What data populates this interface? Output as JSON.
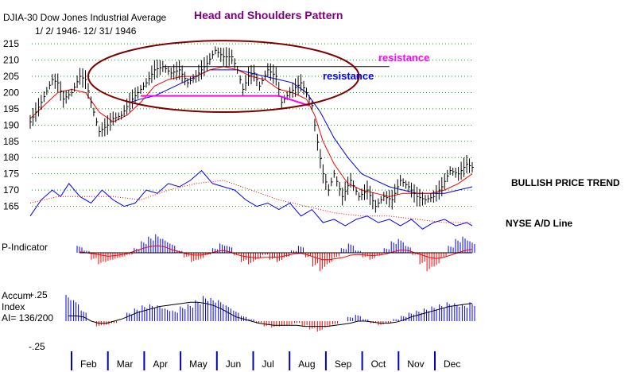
{
  "chart_data": {
    "type": "line",
    "title": "Head and Shoulders Pattern",
    "header": {
      "name": "DJIA-30  Dow Jones Industrial Average",
      "range": "1/ 2/ 1946- 12/ 31/ 1946"
    },
    "x_ticks": [
      "Feb",
      "Mar",
      "Apr",
      "May",
      "Jun",
      "Jul",
      "Aug",
      "Sep",
      "Oct",
      "Nov",
      "Dec"
    ],
    "price_panel": {
      "y_ticks": [
        215,
        210,
        205,
        200,
        195,
        190,
        185,
        180,
        175,
        170,
        165
      ],
      "ylim": [
        160,
        217
      ],
      "djia_points": [
        [
          0,
          191
        ],
        [
          0.4,
          197
        ],
        [
          0.8,
          204
        ],
        [
          1.0,
          203
        ],
        [
          1.2,
          198
        ],
        [
          1.5,
          200
        ],
        [
          1.8,
          205
        ],
        [
          2.0,
          204
        ],
        [
          2.2,
          197
        ],
        [
          2.5,
          188
        ],
        [
          2.8,
          190
        ],
        [
          3.0,
          192
        ],
        [
          3.3,
          193
        ],
        [
          3.6,
          197
        ],
        [
          3.9,
          200
        ],
        [
          4.2,
          203
        ],
        [
          4.5,
          207
        ],
        [
          4.8,
          208
        ],
        [
          5.1,
          206
        ],
        [
          5.4,
          207
        ],
        [
          5.7,
          203
        ],
        [
          6.0,
          205
        ],
        [
          6.4,
          209
        ],
        [
          6.7,
          213
        ],
        [
          7.0,
          211
        ],
        [
          7.3,
          211
        ],
        [
          7.5,
          207
        ],
        [
          7.7,
          201
        ],
        [
          7.9,
          205
        ],
        [
          8.1,
          206
        ],
        [
          8.3,
          202
        ],
        [
          8.6,
          207
        ],
        [
          8.9,
          205
        ],
        [
          9.1,
          197
        ],
        [
          9.4,
          200
        ],
        [
          9.8,
          203
        ],
        [
          10.0,
          200
        ],
        [
          10.2,
          196
        ],
        [
          10.3,
          190
        ],
        [
          10.45,
          182
        ],
        [
          10.6,
          175
        ],
        [
          10.8,
          170
        ],
        [
          11.0,
          175
        ],
        [
          11.3,
          168
        ],
        [
          11.6,
          173
        ],
        [
          11.9,
          168
        ],
        [
          12.2,
          170
        ],
        [
          12.5,
          165
        ],
        [
          12.8,
          168
        ],
        [
          13.1,
          167
        ],
        [
          13.4,
          173
        ],
        [
          13.7,
          171
        ],
        [
          14.0,
          168
        ],
        [
          14.3,
          167
        ],
        [
          14.6,
          168
        ],
        [
          14.9,
          171
        ],
        [
          15.2,
          176
        ],
        [
          15.5,
          175
        ],
        [
          15.8,
          178
        ],
        [
          16.0,
          177
        ]
      ],
      "ma_red": [
        [
          0,
          192
        ],
        [
          0.5,
          196
        ],
        [
          1.0,
          200
        ],
        [
          1.5,
          201
        ],
        [
          2.0,
          200
        ],
        [
          2.5,
          194
        ],
        [
          3.0,
          191
        ],
        [
          3.5,
          193
        ],
        [
          4.0,
          197
        ],
        [
          4.5,
          202
        ],
        [
          5.0,
          204
        ],
        [
          5.5,
          205
        ],
        [
          6.0,
          205
        ],
        [
          6.5,
          207
        ],
        [
          7.0,
          208
        ],
        [
          7.5,
          207
        ],
        [
          8.0,
          205
        ],
        [
          8.5,
          204
        ],
        [
          9.0,
          201
        ],
        [
          9.5,
          200
        ],
        [
          10.0,
          198
        ],
        [
          10.3,
          193
        ],
        [
          10.6,
          185
        ],
        [
          11.0,
          178
        ],
        [
          11.5,
          172
        ],
        [
          12.0,
          170
        ],
        [
          12.5,
          169
        ],
        [
          13.0,
          168
        ],
        [
          13.5,
          169
        ],
        [
          14.0,
          169
        ],
        [
          14.5,
          169
        ],
        [
          15.0,
          170
        ],
        [
          15.5,
          172
        ],
        [
          16.0,
          175
        ]
      ],
      "ma_blue": [
        [
          3.6,
          197
        ],
        [
          4.0,
          198
        ],
        [
          4.5,
          199
        ],
        [
          5.0,
          201
        ],
        [
          5.5,
          203
        ],
        [
          6.0,
          205
        ],
        [
          6.5,
          207
        ],
        [
          7.0,
          207
        ],
        [
          7.5,
          207
        ],
        [
          8.0,
          206
        ],
        [
          8.5,
          205
        ],
        [
          9.0,
          204
        ],
        [
          9.5,
          203
        ],
        [
          10.0,
          200
        ],
        [
          10.5,
          194
        ],
        [
          11.0,
          186
        ],
        [
          11.5,
          180
        ],
        [
          12.0,
          175
        ],
        [
          12.5,
          173
        ],
        [
          13.0,
          171
        ],
        [
          13.5,
          170
        ],
        [
          14.0,
          169
        ],
        [
          14.5,
          169
        ],
        [
          15.0,
          169
        ],
        [
          15.5,
          170
        ],
        [
          16.0,
          171
        ]
      ],
      "resistance_black": [
        [
          4.8,
          208
        ],
        [
          13.0,
          208
        ]
      ],
      "neckline_magenta": [
        [
          4.0,
          199
        ],
        [
          9.0,
          199
        ]
      ],
      "neckline_slope": [
        [
          9.0,
          199
        ],
        [
          10.1,
          196
        ]
      ],
      "head_ellipse": {
        "cx": 7.0,
        "cy": 205,
        "rx": 4.9,
        "ry": 11
      },
      "ad_line": [
        [
          0,
          162
        ],
        [
          0.4,
          167
        ],
        [
          0.8,
          170
        ],
        [
          1.1,
          168
        ],
        [
          1.4,
          172
        ],
        [
          1.8,
          168
        ],
        [
          2.2,
          166
        ],
        [
          2.6,
          170
        ],
        [
          3.0,
          167
        ],
        [
          3.4,
          165
        ],
        [
          3.8,
          166
        ],
        [
          4.2,
          170
        ],
        [
          4.6,
          169
        ],
        [
          5.0,
          172
        ],
        [
          5.4,
          171
        ],
        [
          5.8,
          173
        ],
        [
          6.2,
          176
        ],
        [
          6.6,
          172
        ],
        [
          7.0,
          171
        ],
        [
          7.4,
          170
        ],
        [
          7.8,
          167
        ],
        [
          8.2,
          165
        ],
        [
          8.6,
          166
        ],
        [
          9.0,
          164
        ],
        [
          9.4,
          166
        ],
        [
          9.8,
          162
        ],
        [
          10.2,
          164
        ],
        [
          10.6,
          160
        ],
        [
          11.0,
          161
        ],
        [
          11.4,
          159
        ],
        [
          11.8,
          161
        ],
        [
          12.2,
          162
        ],
        [
          12.6,
          160
        ],
        [
          13.0,
          161
        ],
        [
          13.4,
          159
        ],
        [
          13.8,
          161
        ],
        [
          14.2,
          158
        ],
        [
          14.6,
          160
        ],
        [
          15.0,
          161
        ],
        [
          15.4,
          159
        ],
        [
          15.8,
          160
        ],
        [
          16.0,
          159
        ]
      ],
      "ad_ma": [
        [
          0,
          166
        ],
        [
          1.0,
          168
        ],
        [
          2.0,
          168
        ],
        [
          3.0,
          168
        ],
        [
          4.0,
          167
        ],
        [
          5.0,
          170
        ],
        [
          6.0,
          172
        ],
        [
          7.0,
          173
        ],
        [
          8.0,
          170
        ],
        [
          9.0,
          167
        ],
        [
          10.0,
          165
        ],
        [
          11.0,
          163
        ],
        [
          12.0,
          162
        ],
        [
          13.0,
          162
        ],
        [
          14.0,
          161
        ],
        [
          15.0,
          160
        ],
        [
          16.0,
          160
        ]
      ]
    },
    "p_indicator": {
      "ylim": [
        -1,
        1
      ],
      "values": [
        0.3,
        0.1,
        -0.3,
        -0.5,
        -0.4,
        -0.3,
        -0.2,
        -0.1,
        0.2,
        0.5,
        0.7,
        0.8,
        0.6,
        0.4,
        0.1,
        -0.2,
        -0.4,
        -0.3,
        -0.1,
        0.2,
        0.4,
        0.3,
        -0.1,
        -0.4,
        -0.5,
        -0.3,
        -0.1,
        -0.3,
        -0.4,
        -0.2,
        0.1,
        0.3,
        -0.2,
        -0.6,
        -0.8,
        -0.5,
        -0.2,
        0.2,
        0.4,
        0.1,
        -0.2,
        -0.3,
        -0.1,
        0.2,
        0.5,
        0.6,
        0.3,
        -0.1,
        -0.5,
        -0.8,
        -0.6,
        -0.2,
        0.3,
        0.6,
        0.7,
        0.5
      ],
      "avg": [
        0.05,
        0.0,
        -0.05,
        -0.1,
        -0.15,
        -0.12,
        -0.08,
        0.0,
        0.1,
        0.2,
        0.28,
        0.3,
        0.25,
        0.12,
        0.05,
        -0.05,
        -0.1,
        -0.1,
        -0.05,
        0.05,
        0.1,
        0.05,
        -0.08,
        -0.15,
        -0.2,
        -0.22,
        -0.2,
        -0.2,
        -0.18,
        -0.12,
        -0.05,
        -0.02,
        -0.1,
        -0.2,
        -0.3,
        -0.3,
        -0.25,
        -0.2,
        -0.1,
        -0.08,
        -0.1,
        -0.12,
        -0.1,
        -0.05,
        0.05,
        0.12,
        0.1,
        0.0,
        -0.1,
        -0.2,
        -0.25,
        -0.2,
        -0.1,
        0.0,
        0.1,
        0.15
      ]
    },
    "accum_index": {
      "y_ticks": [
        "+.25",
        "-.25"
      ],
      "ylim": [
        -0.3,
        0.3
      ],
      "values": [
        0.25,
        0.2,
        0.1,
        0.0,
        -0.05,
        -0.04,
        -0.02,
        0.0,
        0.08,
        0.12,
        0.15,
        0.16,
        0.15,
        0.12,
        0.1,
        0.14,
        0.16,
        0.2,
        0.24,
        0.22,
        0.2,
        0.15,
        0.1,
        0.05,
        0.02,
        -0.02,
        -0.05,
        -0.06,
        -0.05,
        -0.04,
        -0.02,
        -0.05,
        -0.08,
        -0.1,
        -0.06,
        -0.03,
        0.0,
        0.04,
        0.06,
        0.02,
        -0.02,
        -0.04,
        -0.02,
        0.02,
        0.05,
        0.08,
        0.1,
        0.12,
        0.14,
        0.16,
        0.18,
        0.17,
        0.16,
        0.18
      ],
      "avg": [
        0.05,
        0.05,
        0.04,
        0.0,
        -0.02,
        -0.02,
        0.0,
        0.02,
        0.05,
        0.08,
        0.1,
        0.12,
        0.14,
        0.15,
        0.16,
        0.17,
        0.18,
        0.18,
        0.17,
        0.15,
        0.12,
        0.08,
        0.04,
        0.02,
        0.0,
        -0.02,
        -0.03,
        -0.04,
        -0.04,
        -0.04,
        -0.04,
        -0.05,
        -0.05,
        -0.05,
        -0.05,
        -0.04,
        -0.03,
        -0.02,
        0.0,
        0.0,
        -0.01,
        -0.02,
        -0.02,
        -0.01,
        0.01,
        0.04,
        0.06,
        0.08,
        0.1,
        0.12,
        0.14,
        0.15,
        0.16,
        0.17
      ]
    }
  },
  "annotations": {
    "resistance_top": "resistance",
    "resistance_mid": "resistance",
    "bullish": "BULLISH PRICE TREND",
    "nyse": "NYSE A/D Line",
    "p_indicator_label": "P-Indicator",
    "accum_label_1": "Accum",
    "accum_label_2": "Index",
    "accum_label_3": "AI= 136/200"
  },
  "colors": {
    "title": "#800080",
    "magenta": "#ff00ff",
    "blue": "#0000ff",
    "red": "#ff0000",
    "black": "#000000",
    "grid": "#00aa00",
    "ellipse": "#800000",
    "month_tick": "#0000c0"
  }
}
